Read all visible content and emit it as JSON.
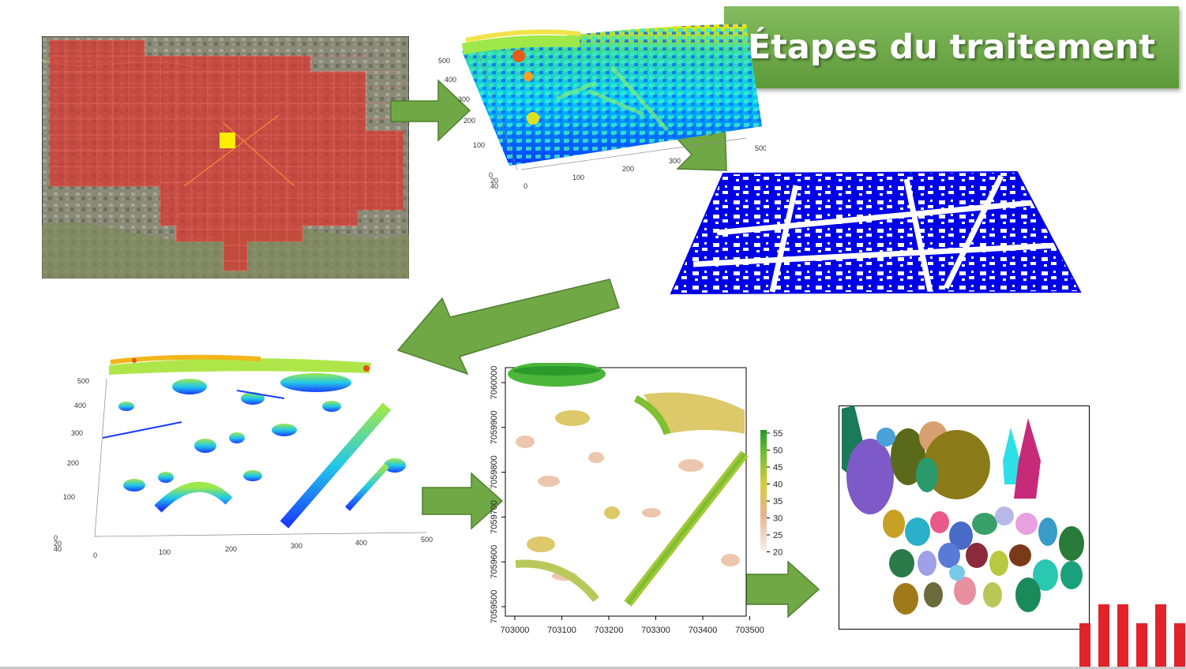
{
  "title": "Étapes du traitement",
  "colors": {
    "title_bg": "#6aa84f",
    "arrow": "#70a845",
    "grid_red": "#d9332e",
    "selected_tile": "#ffee00",
    "building_blue": "#0000e6",
    "logo_red": "#e3232b"
  },
  "panel_3d_top": {
    "y_ticks": [
      "500",
      "400",
      "300",
      "200",
      "100"
    ],
    "x_ticks": [
      "0",
      "100",
      "200",
      "300",
      "500"
    ],
    "z_ticks": [
      "0",
      "20",
      "40"
    ]
  },
  "panel_3d_bottom": {
    "y_ticks": [
      "500",
      "400",
      "300",
      "200",
      "100"
    ],
    "x_ticks": [
      "0",
      "100",
      "200",
      "300",
      "400",
      "500"
    ],
    "z_ticks": [
      "0",
      "20",
      "40"
    ]
  },
  "raster_map": {
    "x_ticks": [
      "703000",
      "703100",
      "703200",
      "703300",
      "703400",
      "703500"
    ],
    "y_ticks": [
      "7060000",
      "7059900",
      "7059800",
      "7059700",
      "7059600",
      "7059500"
    ],
    "legend_ticks": [
      "55",
      "50",
      "45",
      "40",
      "35",
      "30",
      "25",
      "20"
    ]
  },
  "icons": [
    "arrow-right-icon",
    "arrow-down-right-icon",
    "arrow-down-left-icon",
    "university-logo-icon"
  ]
}
